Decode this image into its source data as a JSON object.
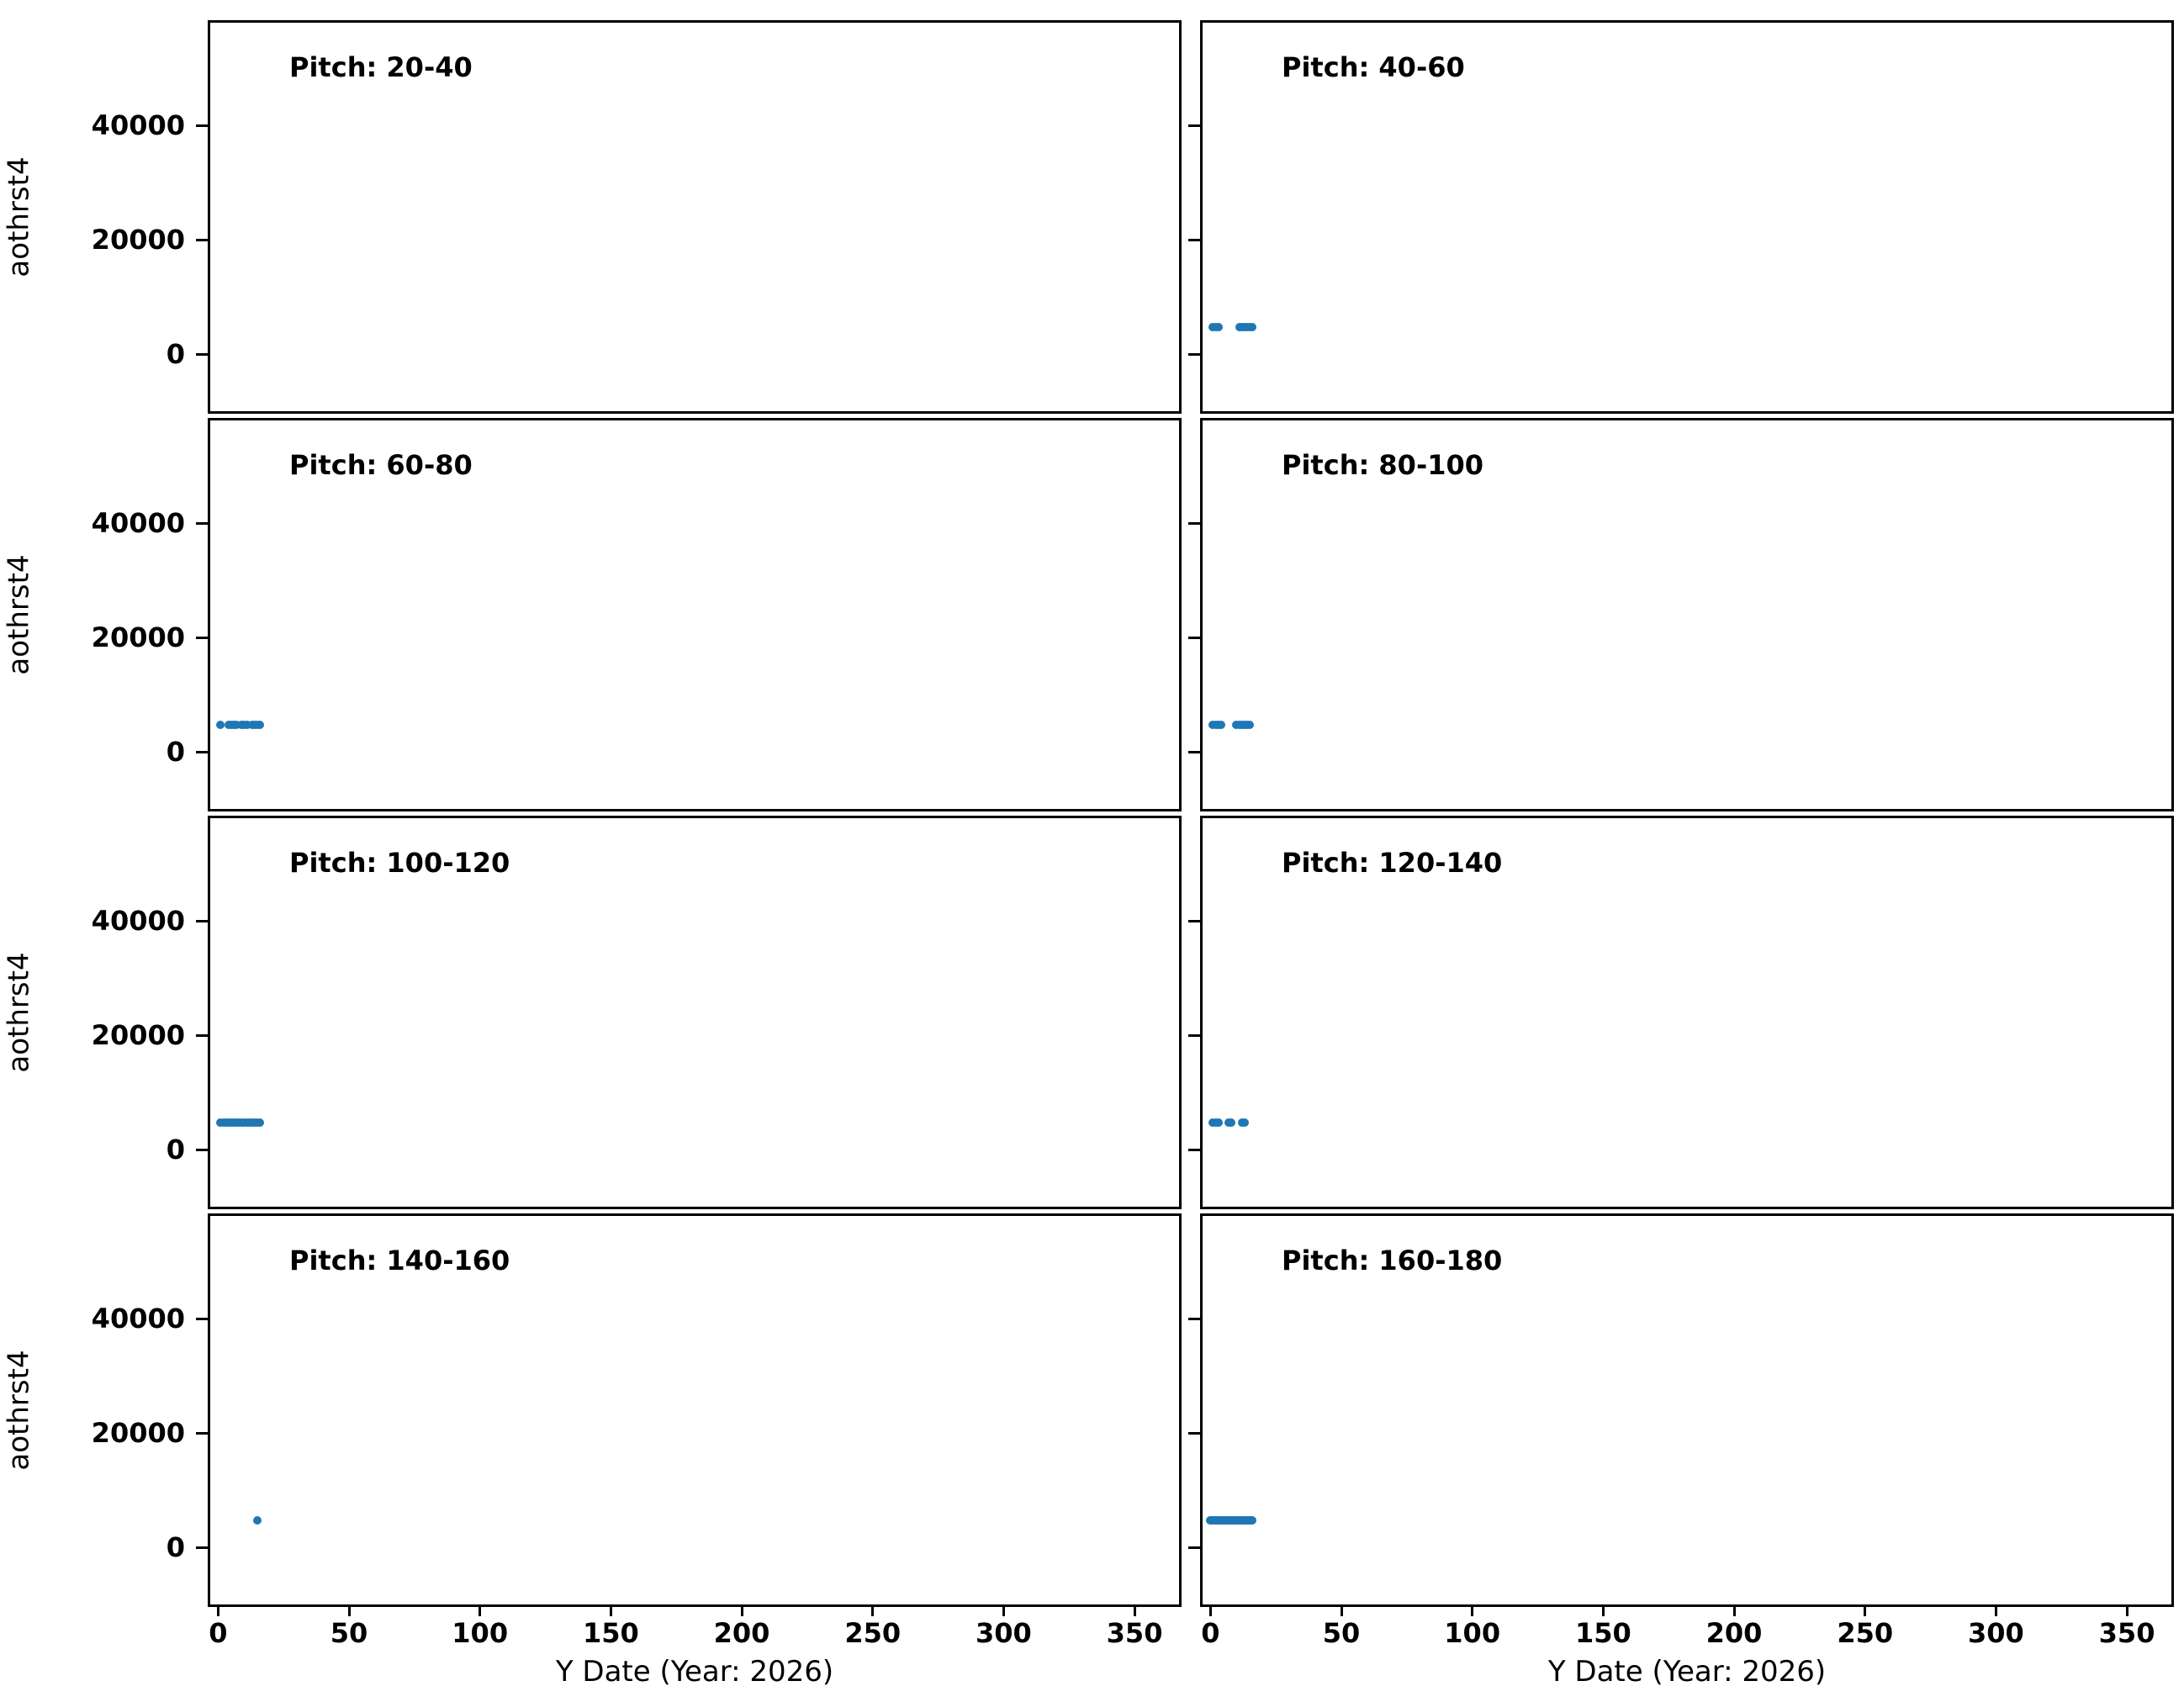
{
  "figure": {
    "background": "#ffffff"
  },
  "axes": {
    "xlabel": "Y Date (Year: 2026)",
    "ylabel": "aothrst4",
    "xticks": [
      0,
      50,
      100,
      150,
      200,
      250,
      300,
      350
    ],
    "yticks": [
      0,
      20000,
      40000
    ],
    "xlim": [
      -3,
      367
    ],
    "ylim": [
      -10000,
      58000
    ],
    "grid": false,
    "marker_color": "#1f77b4",
    "spine_color": "#000000"
  },
  "chart_data": [
    {
      "type": "scatter",
      "title": "Pitch: 20-40",
      "x": [],
      "y": []
    },
    {
      "type": "scatter",
      "title": "Pitch: 40-60",
      "x": [
        1,
        2,
        3,
        11,
        12,
        13,
        14,
        15,
        16
      ],
      "y": [
        4700,
        4700,
        4700,
        4700,
        4700,
        4700,
        4700,
        4700,
        4700
      ]
    },
    {
      "type": "scatter",
      "title": "Pitch: 60-80",
      "x": [
        1,
        4,
        5,
        6,
        7,
        9,
        10,
        11,
        13,
        14,
        15,
        16
      ],
      "y": [
        4700,
        4700,
        4700,
        4700,
        4700,
        4700,
        4700,
        4700,
        4700,
        4700,
        4700,
        4700
      ]
    },
    {
      "type": "scatter",
      "title": "Pitch: 80-100",
      "x": [
        1,
        2,
        3,
        4,
        10,
        11,
        12,
        13,
        14,
        15
      ],
      "y": [
        4700,
        4700,
        4700,
        4700,
        4700,
        4700,
        4700,
        4700,
        4700,
        4700
      ]
    },
    {
      "type": "scatter",
      "title": "Pitch: 100-120",
      "x": [
        1,
        2,
        3,
        4,
        5,
        6,
        7,
        8,
        9,
        10,
        11,
        12,
        13,
        14,
        15,
        16
      ],
      "y": [
        4700,
        4700,
        4700,
        4700,
        4700,
        4700,
        4700,
        4700,
        4700,
        4700,
        4700,
        4700,
        4700,
        4700,
        4700,
        4700
      ]
    },
    {
      "type": "scatter",
      "title": "Pitch: 120-140",
      "x": [
        1,
        2,
        3,
        7,
        8,
        12,
        13
      ],
      "y": [
        4700,
        4700,
        4700,
        4700,
        4700,
        4700,
        4700
      ]
    },
    {
      "type": "scatter",
      "title": "Pitch: 140-160",
      "x": [
        15
      ],
      "y": [
        4700
      ]
    },
    {
      "type": "scatter",
      "title": "Pitch: 160-180",
      "x": [
        0,
        0.5,
        1,
        1.5,
        2,
        2.5,
        3,
        3.5,
        4,
        4.5,
        5,
        5.5,
        6,
        6.5,
        7,
        7.5,
        8,
        8.5,
        9,
        9.5,
        10,
        10.5,
        11,
        11.5,
        12,
        12.5,
        13,
        13.5,
        14,
        14.5,
        15,
        15.5,
        16
      ],
      "y": [
        4700,
        4700,
        4700,
        4700,
        4700,
        4700,
        4700,
        4700,
        4700,
        4700,
        4700,
        4700,
        4700,
        4700,
        4700,
        4700,
        4700,
        4700,
        4700,
        4700,
        4700,
        4700,
        4700,
        4700,
        4700,
        4700,
        4700,
        4700,
        4700,
        4700,
        4700,
        4700,
        4700
      ]
    }
  ]
}
